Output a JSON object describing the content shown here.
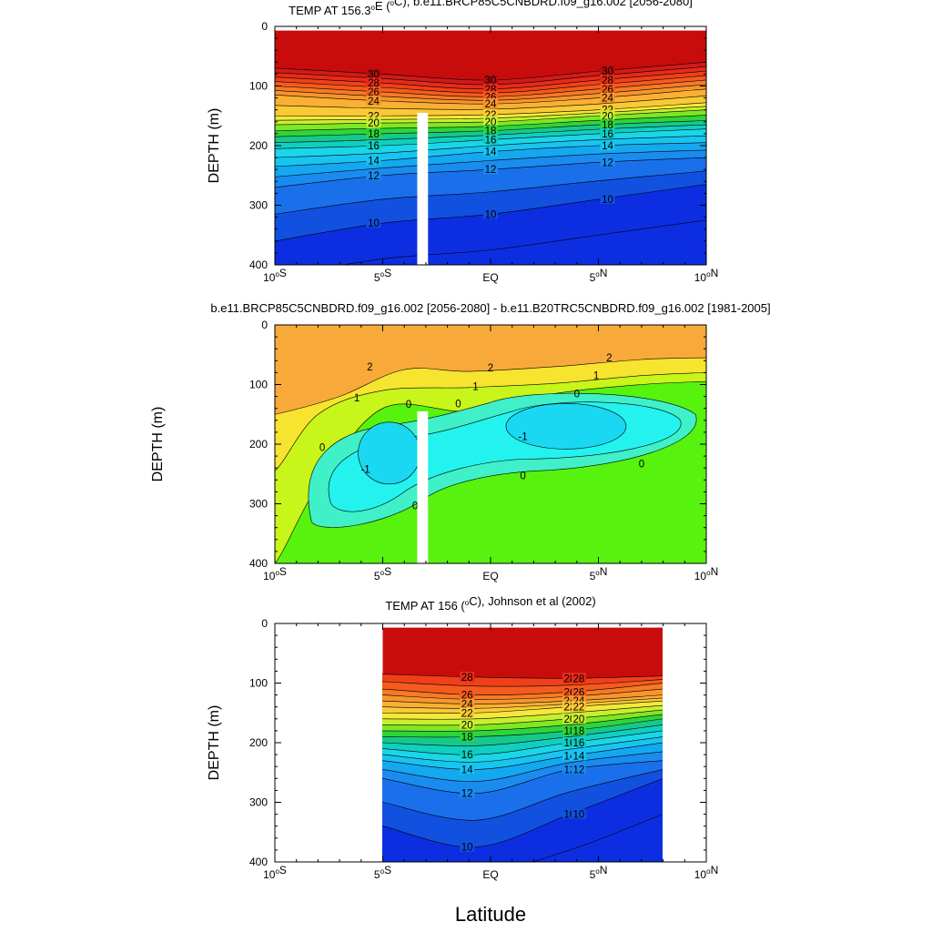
{
  "figure": {
    "xlabel": "Latitude"
  },
  "chart_data": [
    {
      "type": "contour",
      "title": "TEMP AT 156.3°E (°C), b.e11.BRCP85C5CNBDRD.f09_g16.002 [2056-2080]",
      "title_parts": [
        "TEMP AT 156.3",
        "o",
        "E (",
        "o",
        "C), b.e11.BRCP85C5CNBDRD.f09_g16.002 [2056-2080]"
      ],
      "ylabel": "DEPTH (m)",
      "xlim": [
        -10,
        10
      ],
      "ylim": [
        0,
        400
      ],
      "xticks": [
        -10,
        -5,
        0,
        5,
        10
      ],
      "yticks": [
        0,
        100,
        200,
        300,
        400
      ],
      "masked_column_lat": [
        -3.4,
        -2.9
      ],
      "masked_column_depth": [
        145,
        400
      ],
      "contour_interval": 1,
      "labeled_levels": [
        30,
        28,
        26,
        24,
        22,
        20,
        18,
        16,
        14,
        12,
        10
      ],
      "level_depths": [
        {
          "level": 30,
          "depths": [
            70,
            80,
            90,
            75,
            60
          ]
        },
        {
          "level": 28,
          "depths": [
            85,
            95,
            105,
            90,
            75
          ]
        },
        {
          "level": 26,
          "depths": [
            100,
            110,
            118,
            105,
            90
          ]
        },
        {
          "level": 24,
          "depths": [
            115,
            125,
            130,
            120,
            105
          ]
        },
        {
          "level": 22,
          "depths": [
            150,
            150,
            148,
            140,
            128
          ]
        },
        {
          "level": 20,
          "depths": [
            165,
            162,
            160,
            150,
            140
          ]
        },
        {
          "level": 18,
          "depths": [
            185,
            180,
            175,
            165,
            158
          ]
        },
        {
          "level": 16,
          "depths": [
            205,
            200,
            190,
            180,
            172
          ]
        },
        {
          "level": 14,
          "depths": [
            235,
            225,
            210,
            200,
            195
          ]
        },
        {
          "level": 12,
          "depths": [
            270,
            250,
            240,
            228,
            220
          ]
        },
        {
          "level": 10,
          "depths": [
            360,
            330,
            315,
            290,
            265
          ]
        }
      ]
    },
    {
      "type": "contour",
      "title": "b.e11.BRCP85C5CNBDRD.f09_g16.002 [2056-2080] - b.e11.B20TRC5CNBDRD.f09_g16.002 [1981-2005]",
      "ylabel": "DEPTH (m)",
      "xlim": [
        -10,
        10
      ],
      "ylim": [
        0,
        400
      ],
      "xticks": [
        -10,
        -5,
        0,
        5,
        10
      ],
      "yticks": [
        0,
        100,
        200,
        300,
        400
      ],
      "masked_column_lat": [
        -3.4,
        -2.9
      ],
      "masked_column_depth": [
        145,
        400
      ],
      "labeled_levels": [
        2,
        1,
        0,
        -1
      ],
      "regions": [
        {
          "range": "> 2",
          "depth_range": [
            0,
            70
          ]
        },
        {
          "range": "1 to 2",
          "depth_range": [
            70,
            110
          ]
        },
        {
          "range": "0 to 1",
          "depth_range": [
            110,
            400
          ]
        },
        {
          "range": "-1 to 0",
          "center": [
            -3.5,
            230
          ]
        },
        {
          "range": "< -1",
          "center": [
            -5,
            210
          ]
        },
        {
          "range": "-1 to 0",
          "center": [
            3.5,
            180
          ]
        },
        {
          "range": "< -1",
          "center": [
            3.5,
            170
          ]
        }
      ]
    },
    {
      "type": "contour",
      "title": "TEMP AT 156 (°C), Johnson et al (2002)",
      "title_parts": [
        "TEMP AT 156 (",
        "o",
        "C), Johnson et al (2002)"
      ],
      "ylabel": "DEPTH (m)",
      "xlim": [
        -10,
        10
      ],
      "ylim": [
        0,
        400
      ],
      "xticks": [
        -10,
        -5,
        0,
        5,
        10
      ],
      "yticks": [
        0,
        100,
        200,
        300,
        400
      ],
      "data_lat_range": [
        -5,
        8
      ],
      "data_depth_range": [
        7,
        400
      ],
      "labeled_levels": [
        28,
        26,
        24,
        22,
        20,
        18,
        16,
        14,
        12,
        10
      ],
      "level_depths": [
        {
          "level": 28,
          "depths": [
            85,
            90,
            92,
            88
          ]
        },
        {
          "level": 26,
          "depths": [
            110,
            120,
            115,
            100
          ]
        },
        {
          "level": 24,
          "depths": [
            130,
            135,
            130,
            120
          ]
        },
        {
          "level": 22,
          "depths": [
            150,
            150,
            140,
            130
          ]
        },
        {
          "level": 20,
          "depths": [
            170,
            170,
            160,
            145
          ]
        },
        {
          "level": 18,
          "depths": [
            190,
            190,
            180,
            160
          ]
        },
        {
          "level": 16,
          "depths": [
            210,
            220,
            200,
            180
          ]
        },
        {
          "level": 14,
          "depths": [
            230,
            245,
            222,
            200
          ]
        },
        {
          "level": 12,
          "depths": [
            260,
            285,
            245,
            230
          ]
        },
        {
          "level": 10,
          "depths": [
            340,
            375,
            320,
            260
          ]
        }
      ]
    }
  ],
  "xtick_labels": {
    "-10": [
      "10",
      "o",
      "S"
    ],
    "-5": [
      "5",
      "o",
      "S"
    ],
    "0": [
      "EQ"
    ],
    "5": [
      "5",
      "o",
      "N"
    ],
    "10": [
      "10",
      "o",
      "N"
    ]
  }
}
